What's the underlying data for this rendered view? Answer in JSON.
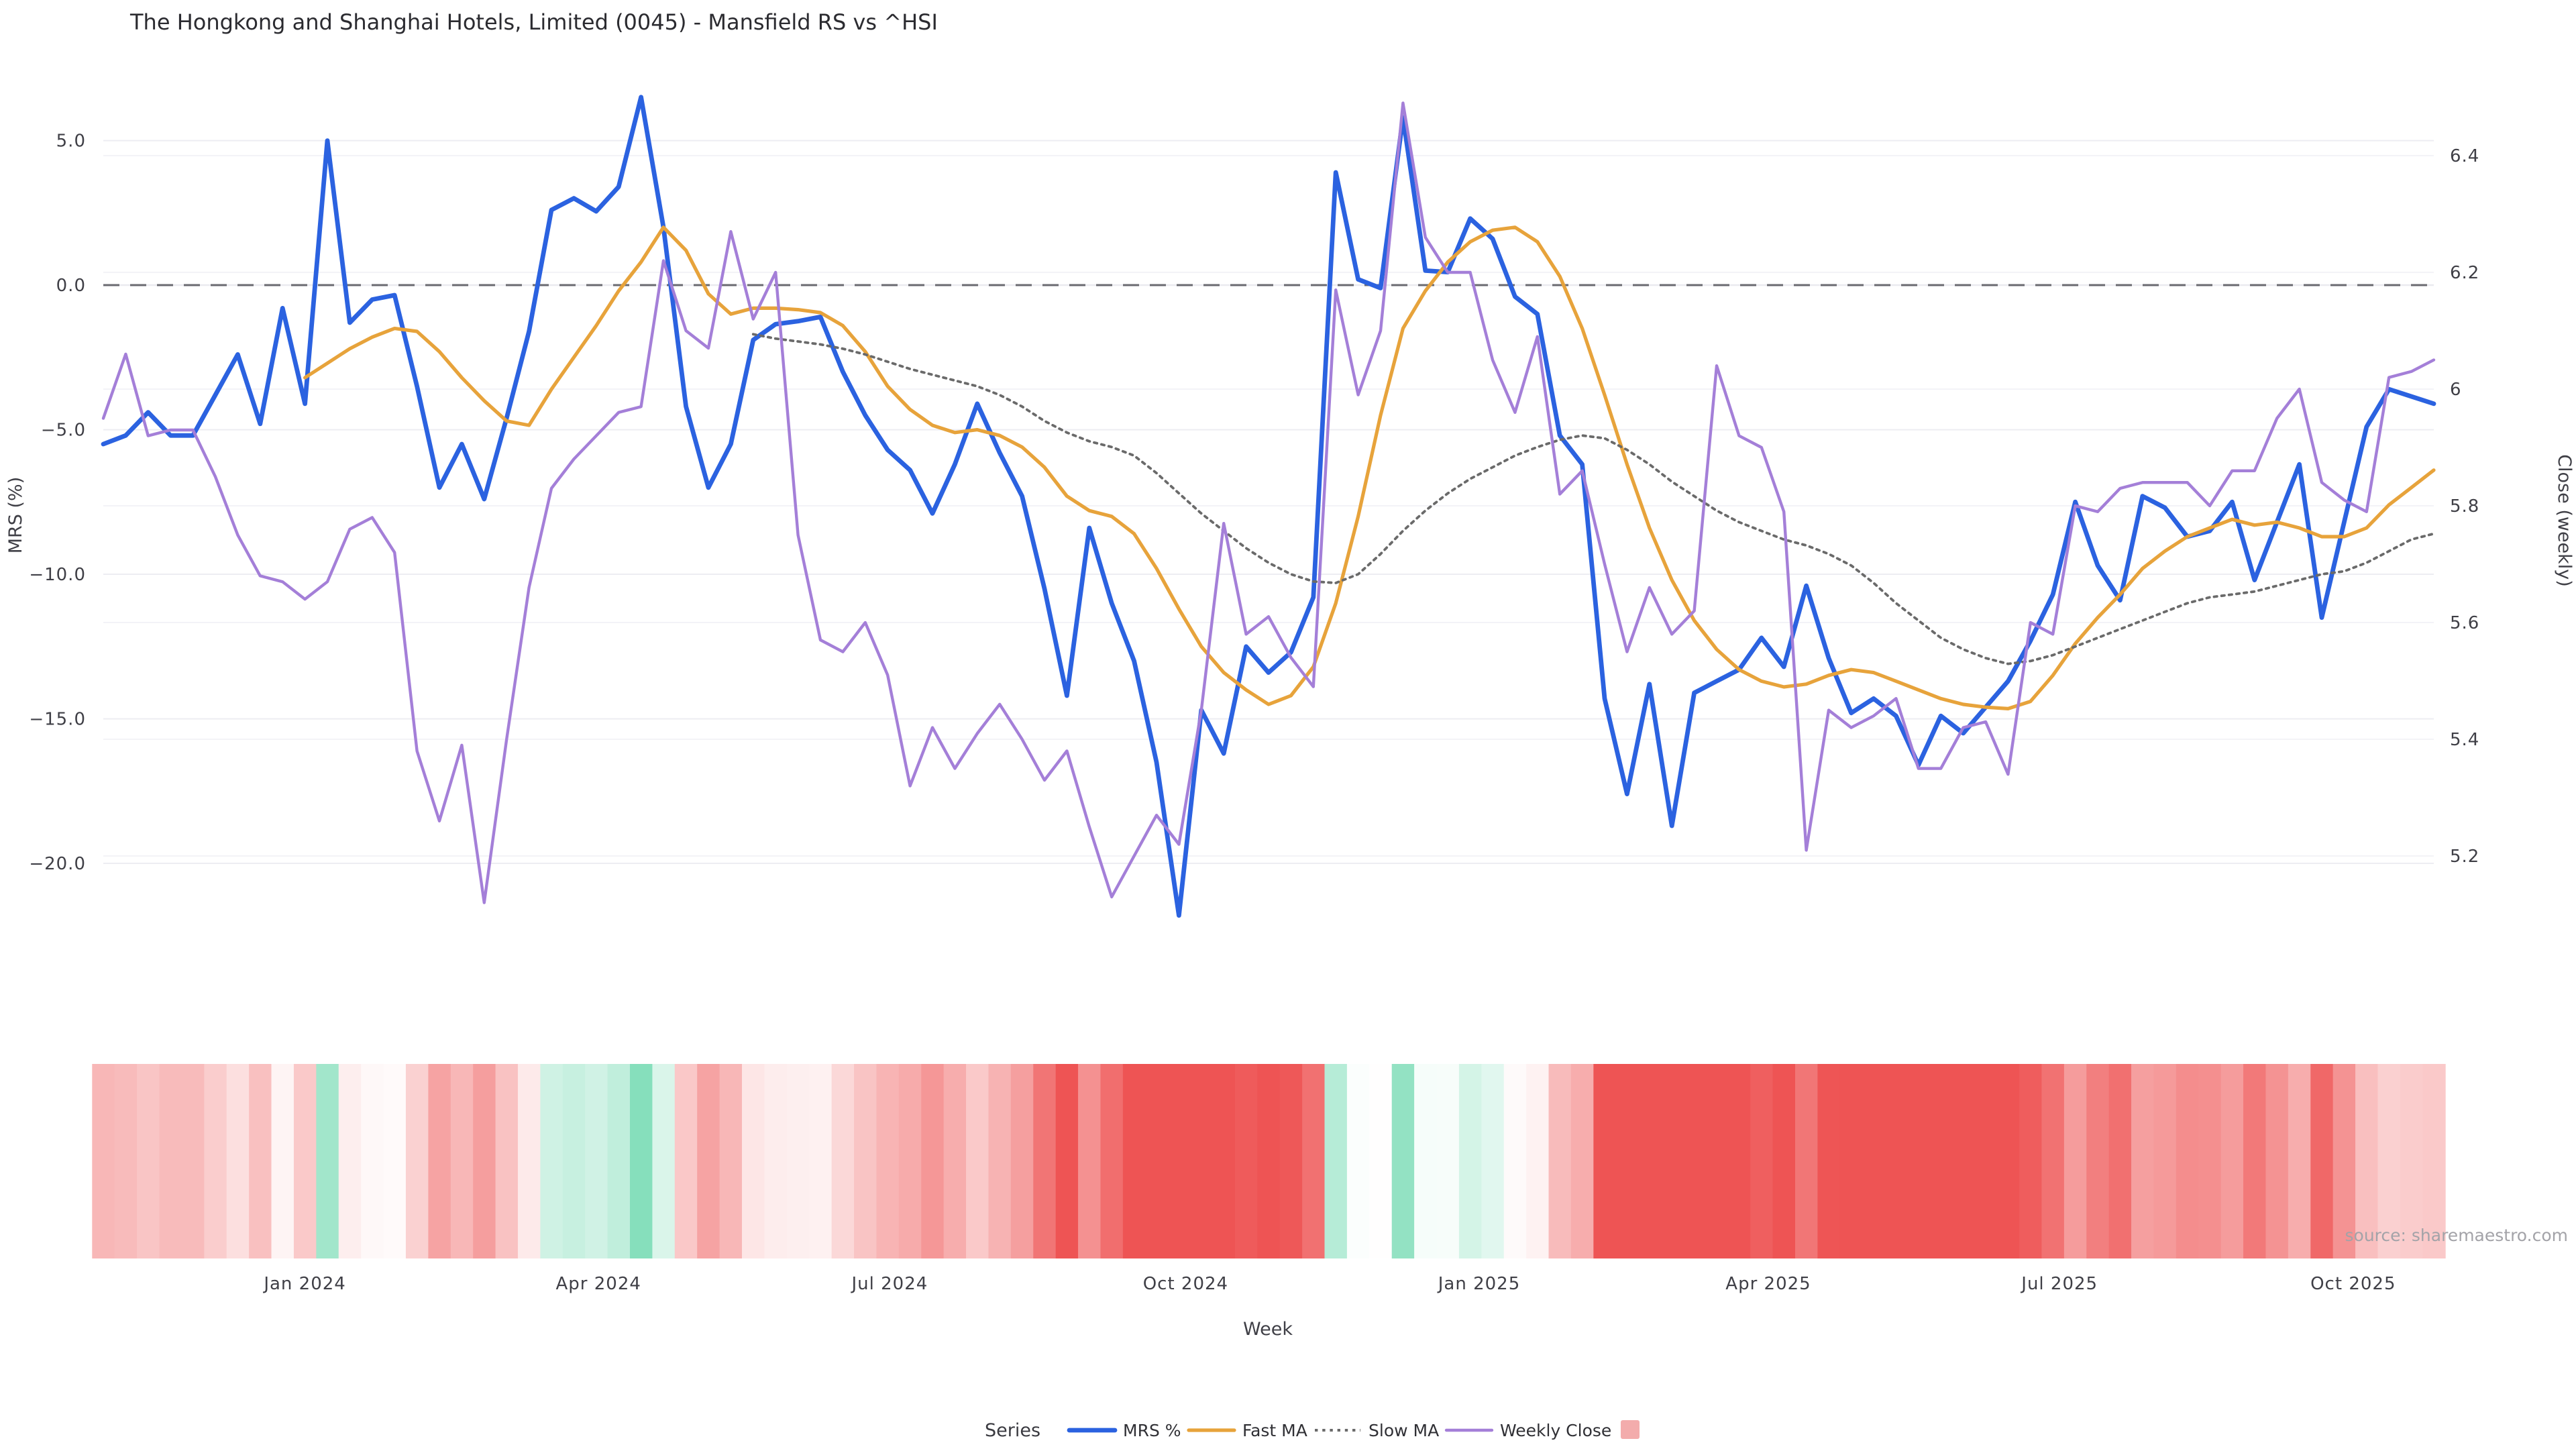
{
  "title": "The Hongkong and Shanghai Hotels, Limited (0045) - Mansfield RS vs ^HSI",
  "source": "source: sharemaestro.com",
  "legend": {
    "title": "Series",
    "items": [
      {
        "label": "MRS %"
      },
      {
        "label": "Fast MA"
      },
      {
        "label": "Slow MA"
      },
      {
        "label": "Weekly Close"
      }
    ],
    "heat_swatch_color": "#f3acac"
  },
  "chart_data": {
    "type": "line",
    "xlabel": "Week",
    "n_weeks": 105,
    "x_ticks": [
      {
        "week": 9.0,
        "label": "Jan 2024"
      },
      {
        "week": 22.1,
        "label": "Apr 2024"
      },
      {
        "week": 35.1,
        "label": "Jul 2024"
      },
      {
        "week": 48.3,
        "label": "Oct 2024"
      },
      {
        "week": 61.4,
        "label": "Jan 2025"
      },
      {
        "week": 74.3,
        "label": "Apr 2025"
      },
      {
        "week": 87.3,
        "label": "Jul 2025"
      },
      {
        "week": 100.4,
        "label": "Oct 2025"
      }
    ],
    "left_axis": {
      "label": "MRS (%)",
      "ticks": [
        5,
        0,
        -5,
        -10,
        -15,
        -20
      ],
      "tick_labels": [
        "5.0",
        "0.0",
        "−5.0",
        "−10.0",
        "−15.0",
        "−20.0"
      ],
      "range": [
        -23.5,
        7.5
      ]
    },
    "right_axis": {
      "label": "Close (weekly)",
      "ticks": [
        6.4,
        6.2,
        6,
        5.8,
        5.6,
        5.4,
        5.2
      ],
      "tick_labels": [
        "6.4",
        "6.2",
        "6",
        "5.8",
        "5.6",
        "5.4",
        "5.2"
      ],
      "range": [
        5.05,
        6.55
      ]
    },
    "zero_line": {
      "axis": "left",
      "value": 0,
      "style": "dashed",
      "color": "#6a6a70"
    },
    "series": [
      {
        "name": "MRS %",
        "axis": "left",
        "color": "#2b62e0",
        "width": 3.4,
        "style": "solid",
        "values": [
          -5.5,
          -5.2,
          -4.4,
          -5.2,
          -5.2,
          -3.8,
          -2.4,
          -4.8,
          -0.8,
          -4.1,
          5.0,
          -1.3,
          -0.5,
          -0.35,
          -3.5,
          -7.0,
          -5.5,
          -7.4,
          -4.6,
          -1.6,
          2.6,
          3.0,
          2.55,
          3.4,
          6.5,
          2.0,
          -4.2,
          -7.0,
          -5.5,
          -1.9,
          -1.35,
          -1.25,
          -1.1,
          -3.0,
          -4.5,
          -5.7,
          -6.4,
          -7.9,
          -6.2,
          -4.1,
          -5.8,
          -7.3,
          -10.5,
          -14.2,
          -8.4,
          -11.0,
          -13.0,
          -16.5,
          -21.8,
          -14.7,
          -16.2,
          -12.5,
          -13.4,
          -12.7,
          -10.8,
          3.9,
          0.2,
          -0.1,
          5.8,
          0.5,
          0.45,
          2.3,
          1.6,
          -0.4,
          -1.0,
          -5.2,
          -6.2,
          -14.3,
          -17.6,
          -13.8,
          -18.7,
          -14.1,
          -13.7,
          -13.3,
          -12.2,
          -13.2,
          -10.4,
          -12.9,
          -14.8,
          -14.3,
          -14.9,
          -16.6,
          -14.9,
          -15.5,
          -14.6,
          -13.7,
          -12.3,
          -10.7,
          -7.5,
          -9.7,
          -10.9,
          -7.3,
          -7.7,
          -8.7,
          -8.5,
          -7.5,
          -10.2,
          -8.2,
          -6.2,
          -11.5,
          -8.2,
          -4.9,
          -3.6,
          -3.85,
          -4.1
        ]
      },
      {
        "name": "Fast MA",
        "axis": "left",
        "color": "#e7a33b",
        "width": 2.6,
        "style": "solid",
        "values": [
          null,
          null,
          null,
          null,
          null,
          null,
          null,
          null,
          null,
          -3.2,
          -2.7,
          -2.2,
          -1.8,
          -1.5,
          -1.6,
          -2.3,
          -3.2,
          -4.0,
          -4.7,
          -4.85,
          -3.6,
          -2.5,
          -1.4,
          -0.2,
          0.8,
          2.0,
          1.2,
          -0.3,
          -1.0,
          -0.8,
          -0.8,
          -0.85,
          -0.95,
          -1.4,
          -2.3,
          -3.5,
          -4.3,
          -4.85,
          -5.1,
          -5.0,
          -5.2,
          -5.6,
          -6.3,
          -7.3,
          -7.8,
          -8.0,
          -8.6,
          -9.8,
          -11.2,
          -12.5,
          -13.4,
          -14.0,
          -14.5,
          -14.2,
          -13.2,
          -11.0,
          -8.0,
          -4.5,
          -1.5,
          -0.2,
          0.8,
          1.5,
          1.9,
          2.0,
          1.5,
          0.3,
          -1.5,
          -3.8,
          -6.2,
          -8.4,
          -10.2,
          -11.6,
          -12.6,
          -13.3,
          -13.7,
          -13.9,
          -13.8,
          -13.5,
          -13.3,
          -13.4,
          -13.7,
          -14.0,
          -14.3,
          -14.5,
          -14.6,
          -14.65,
          -14.4,
          -13.5,
          -12.4,
          -11.5,
          -10.7,
          -9.8,
          -9.2,
          -8.7,
          -8.4,
          -8.1,
          -8.3,
          -8.2,
          -8.4,
          -8.7,
          -8.7,
          -8.4,
          -7.6,
          -7.0,
          -6.4
        ]
      },
      {
        "name": "Slow MA",
        "axis": "left",
        "color": "#6a6a6a",
        "width": 1.9,
        "style": "dotted",
        "values": [
          null,
          null,
          null,
          null,
          null,
          null,
          null,
          null,
          null,
          null,
          null,
          null,
          null,
          null,
          null,
          null,
          null,
          null,
          null,
          null,
          null,
          null,
          null,
          null,
          null,
          null,
          null,
          null,
          null,
          -1.7,
          -1.85,
          -1.95,
          -2.05,
          -2.2,
          -2.4,
          -2.65,
          -2.9,
          -3.1,
          -3.3,
          -3.5,
          -3.8,
          -4.2,
          -4.7,
          -5.1,
          -5.4,
          -5.6,
          -5.9,
          -6.5,
          -7.2,
          -7.9,
          -8.5,
          -9.1,
          -9.6,
          -10.0,
          -10.25,
          -10.3,
          -10.0,
          -9.3,
          -8.5,
          -7.8,
          -7.2,
          -6.7,
          -6.3,
          -5.9,
          -5.6,
          -5.35,
          -5.2,
          -5.3,
          -5.7,
          -6.2,
          -6.8,
          -7.3,
          -7.8,
          -8.2,
          -8.5,
          -8.8,
          -9.0,
          -9.3,
          -9.7,
          -10.3,
          -11.0,
          -11.6,
          -12.2,
          -12.6,
          -12.9,
          -13.1,
          -13.0,
          -12.8,
          -12.5,
          -12.2,
          -11.9,
          -11.6,
          -11.3,
          -11.0,
          -10.8,
          -10.7,
          -10.6,
          -10.4,
          -10.2,
          -10.0,
          -9.9,
          -9.6,
          -9.2,
          -8.8,
          -8.6
        ]
      },
      {
        "name": "Weekly Close",
        "axis": "right",
        "color": "#a47fd8",
        "width": 2.2,
        "style": "solid",
        "values": [
          5.95,
          6.06,
          5.92,
          5.93,
          5.93,
          5.85,
          5.75,
          5.68,
          5.67,
          5.64,
          5.67,
          5.76,
          5.78,
          5.72,
          5.38,
          5.26,
          5.39,
          5.12,
          5.4,
          5.66,
          5.83,
          5.88,
          5.92,
          5.96,
          5.97,
          6.22,
          6.1,
          6.07,
          6.27,
          6.12,
          6.2,
          5.75,
          5.57,
          5.55,
          5.6,
          5.51,
          5.32,
          5.42,
          5.35,
          5.41,
          5.46,
          5.4,
          5.33,
          5.38,
          5.25,
          5.13,
          5.2,
          5.27,
          5.22,
          5.45,
          5.77,
          5.58,
          5.61,
          5.54,
          5.49,
          6.17,
          5.99,
          6.1,
          6.49,
          6.26,
          6.2,
          6.2,
          6.05,
          5.96,
          6.09,
          5.82,
          5.86,
          5.7,
          5.55,
          5.66,
          5.58,
          5.62,
          6.04,
          5.92,
          5.9,
          5.79,
          5.21,
          5.45,
          5.42,
          5.44,
          5.47,
          5.35,
          5.35,
          5.42,
          5.43,
          5.34,
          5.6,
          5.58,
          5.8,
          5.79,
          5.83,
          5.84,
          5.84,
          5.84,
          5.8,
          5.86,
          5.86,
          5.95,
          6.0,
          5.84,
          5.81,
          5.79,
          6.02,
          6.03,
          6.05
        ]
      }
    ],
    "heatmap": {
      "based_on": "MRS %",
      "neg_color": "#ee5454",
      "zero_color": "#ffffff",
      "pos_color": "#86dfbc",
      "neg_cap": -13,
      "pos_cap": 6.5
    },
    "grid": true,
    "legend_position": "bottom-center"
  }
}
